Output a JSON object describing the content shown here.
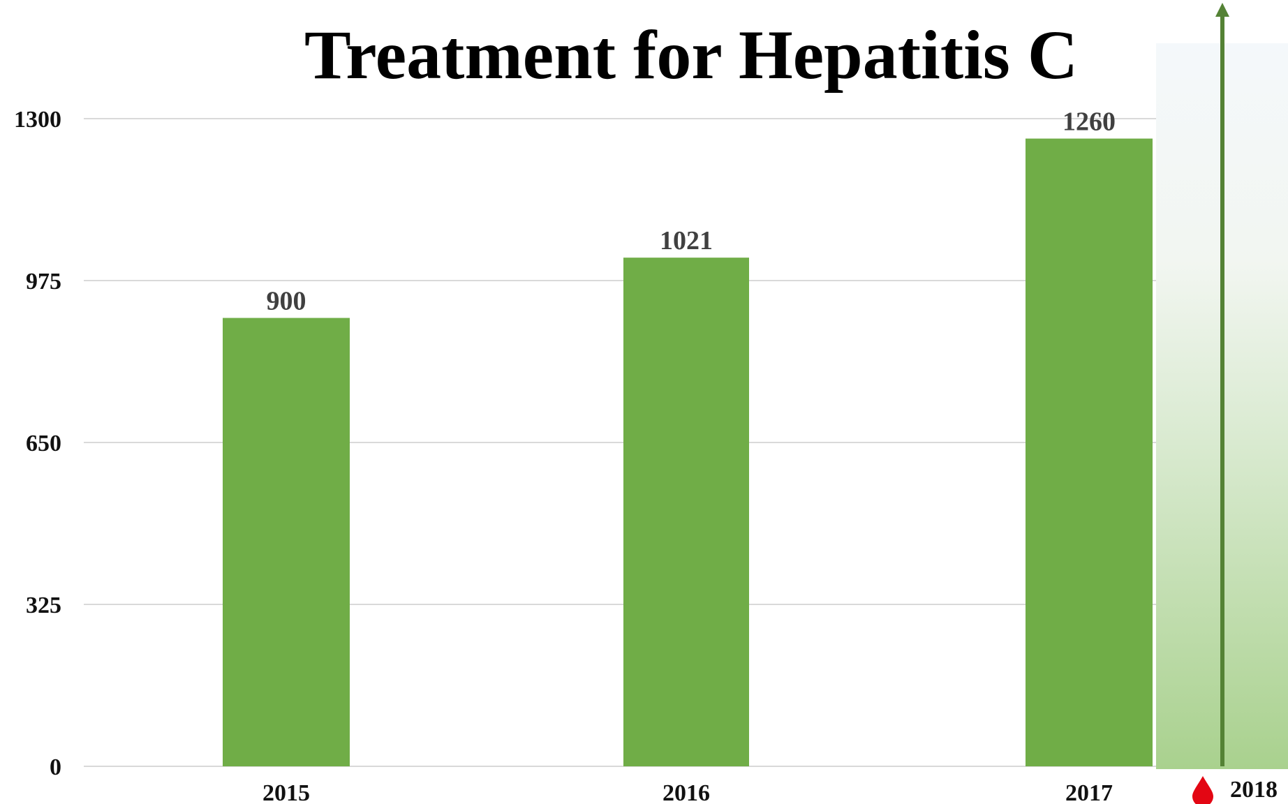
{
  "chart_data": {
    "type": "bar",
    "title": "Treatment for Hepatitis C",
    "categories": [
      "2015",
      "2016",
      "2017"
    ],
    "values": [
      900,
      1021,
      1260
    ],
    "data_labels": [
      "900",
      "1021",
      "1260"
    ],
    "ylim": [
      0,
      1300
    ],
    "yticks": [
      0,
      325,
      650,
      975,
      1300
    ],
    "ytick_labels": [
      "0",
      "325",
      "650",
      "975",
      "1300"
    ],
    "grid": true,
    "legend": "none",
    "projection": {
      "category": "2018",
      "icon": "blood-drop-icon",
      "marker": "upward-arrow"
    },
    "colors": {
      "bar": "#70ad47",
      "arrow": "#548235",
      "drop": "#e30613",
      "grid": "#d9d9d9"
    }
  }
}
